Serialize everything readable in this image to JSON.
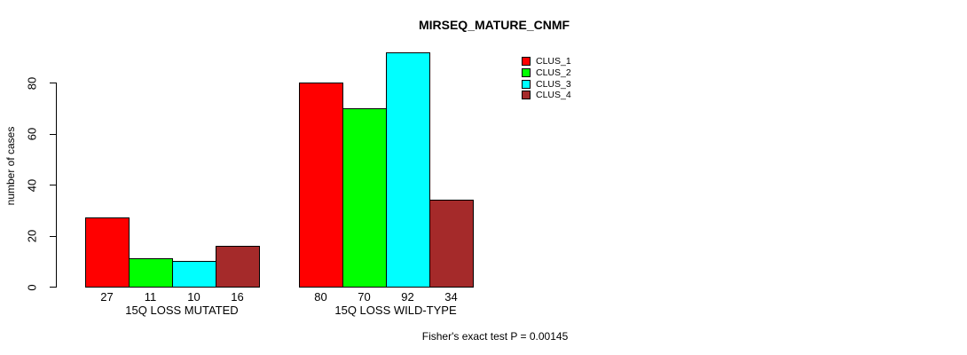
{
  "chart_data": {
    "type": "bar",
    "title": "MIRSEQ_MATURE_CNMF",
    "ylabel": "number of cases",
    "xlabel": "",
    "categories": [
      "15Q LOSS MUTATED",
      "15Q LOSS WILD-TYPE"
    ],
    "series": [
      {
        "name": "CLUS_1",
        "color": "#FF0000",
        "values": [
          27,
          80
        ]
      },
      {
        "name": "CLUS_2",
        "color": "#00FF00",
        "values": [
          11,
          70
        ]
      },
      {
        "name": "CLUS_3",
        "color": "#00FFFF",
        "values": [
          10,
          92
        ]
      },
      {
        "name": "CLUS_4",
        "color": "#A52A2A",
        "values": [
          16,
          34
        ]
      }
    ],
    "yticks": [
      0,
      20,
      40,
      60,
      80
    ],
    "ylim": [
      0,
      92
    ],
    "grid": false,
    "bar_value_labels_shown": true,
    "legend_position": "top-right",
    "annotation": "Fisher's exact test P = 0.00145"
  },
  "colors": {
    "axis": "#000000",
    "text": "#000000",
    "background": "#FFFFFF"
  }
}
